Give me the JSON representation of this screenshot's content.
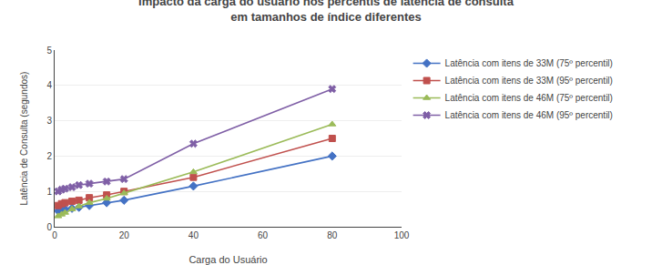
{
  "chart_data": {
    "type": "line",
    "title": "Impacto da carga do usuário nos percentis de latência de consulta\nem tamanhos de índice diferentes",
    "x_label": "Carga do Usuário",
    "y_label": "Latência de Consulta (segundos)",
    "xlim": [
      0,
      100
    ],
    "ylim": [
      0,
      5
    ],
    "xticks": [
      0,
      20,
      40,
      60,
      80,
      100
    ],
    "yticks": [
      0,
      1,
      2,
      3,
      4,
      5
    ],
    "grid": "y",
    "legend": "right",
    "series": [
      {
        "name": "Latência com itens de 33M (75º percentil)",
        "color": "#4472C4",
        "marker": "diamond",
        "x": [
          1,
          2,
          3,
          5,
          7,
          10,
          15,
          20,
          40,
          80
        ],
        "values": [
          0.45,
          0.48,
          0.5,
          0.52,
          0.55,
          0.6,
          0.68,
          0.75,
          1.15,
          2.0
        ]
      },
      {
        "name": "Latência com itens de 33M (95º percentil)",
        "color": "#C0504D",
        "marker": "square",
        "x": [
          1,
          2,
          3,
          5,
          7,
          10,
          15,
          20,
          40,
          80
        ],
        "values": [
          0.6,
          0.65,
          0.68,
          0.72,
          0.75,
          0.82,
          0.9,
          1.0,
          1.4,
          2.5
        ]
      },
      {
        "name": "Latência com itens de 46M (75º percentil)",
        "color": "#9BBB59",
        "marker": "triangle-up",
        "x": [
          1,
          2,
          3,
          5,
          7,
          10,
          15,
          20,
          40,
          80
        ],
        "values": [
          0.3,
          0.35,
          0.4,
          0.5,
          0.58,
          0.68,
          0.8,
          0.95,
          1.55,
          2.9
        ]
      },
      {
        "name": "Latência com itens de 46M (95º percentil)",
        "color": "#7F5FA6",
        "marker": "x",
        "x": [
          1,
          2,
          3,
          5,
          7,
          10,
          15,
          20,
          40,
          80
        ],
        "values": [
          1.0,
          1.05,
          1.08,
          1.12,
          1.18,
          1.22,
          1.28,
          1.35,
          2.35,
          3.9
        ]
      }
    ]
  }
}
